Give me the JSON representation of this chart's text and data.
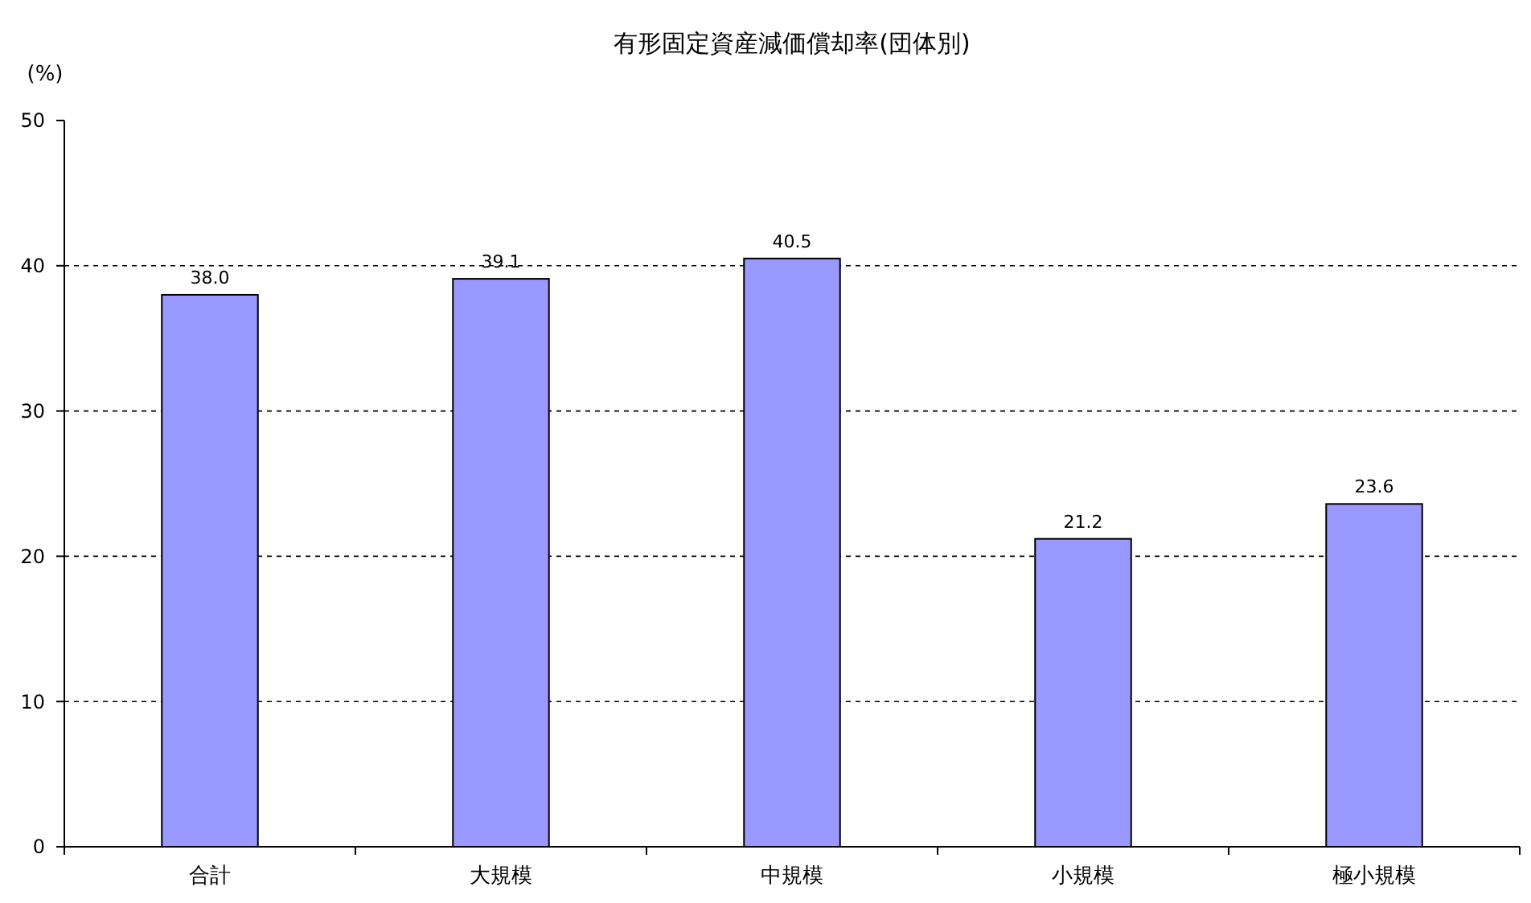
{
  "chart_data": {
    "type": "bar",
    "title": "有形固定資産減価償却率(団体別)",
    "ylabel": "(%)",
    "categories": [
      "合計",
      "大規模",
      "中規模",
      "小規模",
      "極小規模"
    ],
    "values": [
      38.0,
      39.1,
      40.5,
      21.2,
      23.6
    ],
    "value_labels": [
      "38.0",
      "39.1",
      "40.5",
      "21.2",
      "23.6"
    ],
    "color": "#9999ff",
    "ylim": [
      0,
      50
    ],
    "yticks": [
      0,
      10,
      20,
      30,
      40,
      50
    ],
    "grid": "y"
  }
}
